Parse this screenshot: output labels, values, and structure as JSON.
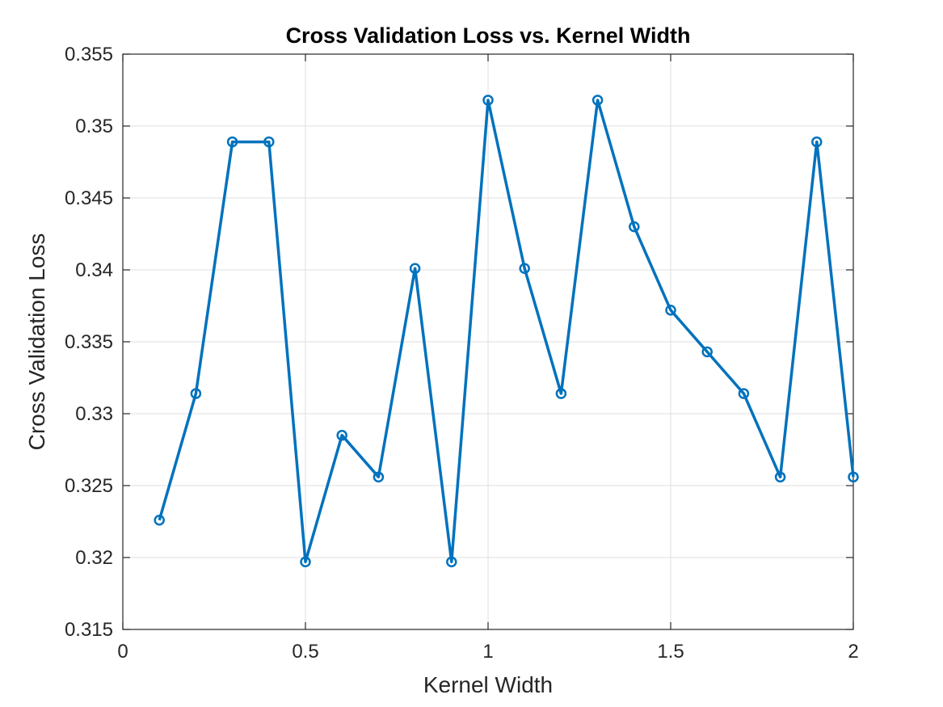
{
  "chart_data": {
    "type": "line",
    "title": "Cross Validation Loss vs. Kernel Width",
    "xlabel": "Kernel Width",
    "ylabel": "Cross Validation Loss",
    "xlim": [
      0,
      2
    ],
    "ylim": [
      0.315,
      0.355
    ],
    "xticks": [
      0,
      0.5,
      1,
      1.5,
      2
    ],
    "xtick_labels": [
      "0",
      "0.5",
      "1",
      "1.5",
      "2"
    ],
    "yticks": [
      0.315,
      0.32,
      0.325,
      0.33,
      0.335,
      0.34,
      0.345,
      0.35,
      0.355
    ],
    "ytick_labels": [
      "0.315",
      "0.32",
      "0.325",
      "0.33",
      "0.335",
      "0.34",
      "0.345",
      "0.35",
      "0.355"
    ],
    "grid": true,
    "marker": "circle",
    "line_color": "#0072BD",
    "x": [
      0.1,
      0.2,
      0.3,
      0.4,
      0.5,
      0.6,
      0.7,
      0.8,
      0.9,
      1.0,
      1.1,
      1.2,
      1.3,
      1.4,
      1.5,
      1.6,
      1.7,
      1.8,
      1.9,
      2.0
    ],
    "y": [
      0.3226,
      0.3314,
      0.3489,
      0.3489,
      0.3197,
      0.3285,
      0.3256,
      0.3401,
      0.3197,
      0.3518,
      0.3401,
      0.3314,
      0.3518,
      0.343,
      0.3372,
      0.3343,
      0.3314,
      0.3256,
      0.3489,
      0.3256
    ]
  }
}
